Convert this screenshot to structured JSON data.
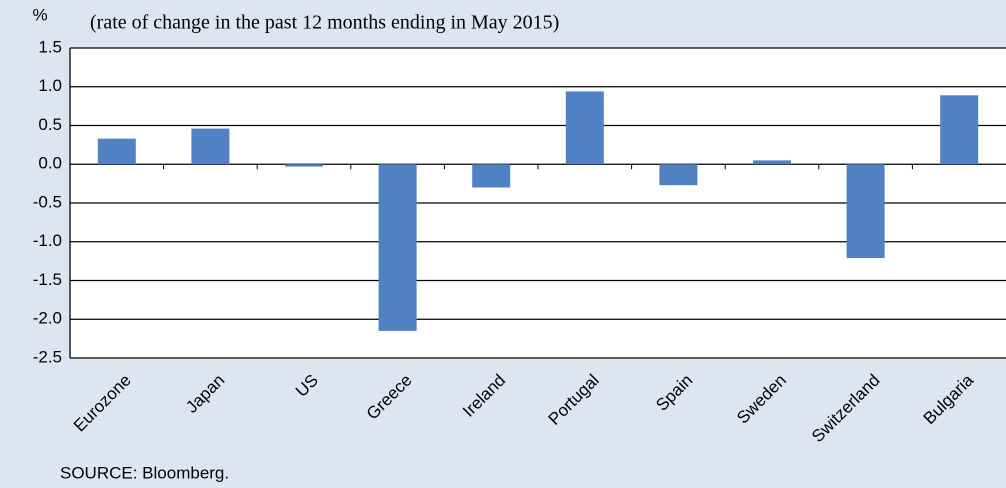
{
  "chart_data": {
    "type": "bar",
    "y_unit": "%",
    "subtitle": "(rate of change in the past 12 months ending in May 2015)",
    "source": "SOURCE: Bloomberg.",
    "categories": [
      "Eurozone",
      "Japan",
      "US",
      "Greece",
      "Ireland",
      "Portugal",
      "Spain",
      "Sweden",
      "Switzerland",
      "Bulgaria"
    ],
    "values": [
      0.33,
      0.46,
      -0.03,
      -2.15,
      -0.3,
      0.94,
      -0.27,
      0.05,
      -1.21,
      0.89
    ],
    "color": "#4f81c3",
    "ylim": [
      -2.5,
      1.5
    ],
    "yticks": [
      -2.5,
      {
        "value": -2,
        "label": "-2.0"
      },
      -1.5,
      {
        "value": -1,
        "label": "-1.0"
      },
      -0.5,
      {
        "value": 0,
        "label": "0.0"
      },
      0.5,
      {
        "value": 1,
        "label": "1.0"
      },
      1.5
    ],
    "grid": true
  }
}
